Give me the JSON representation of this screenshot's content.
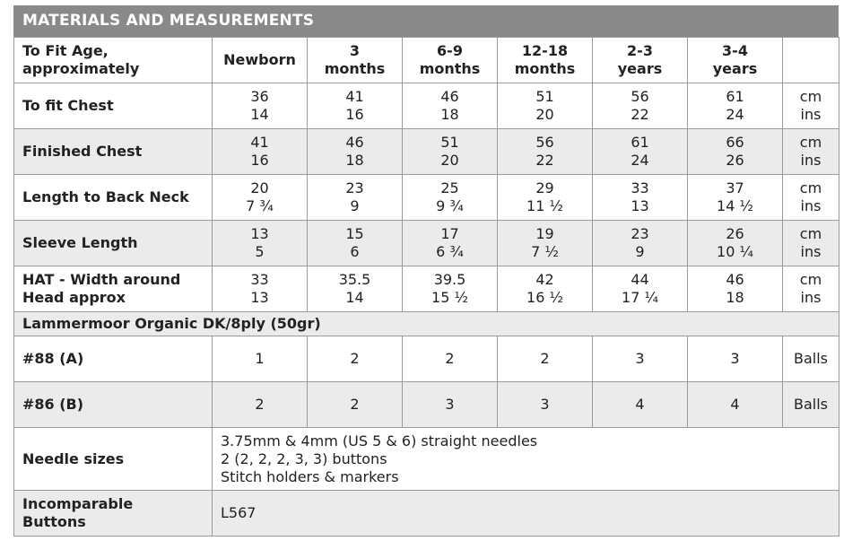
{
  "title": "MATERIALS AND MEASUREMENTS",
  "header": {
    "label_line1": "To Fit Age,",
    "label_line2": "approximately",
    "sizes": [
      {
        "l1": "Newborn",
        "l2": ""
      },
      {
        "l1": "3",
        "l2": "months"
      },
      {
        "l1": "6-9",
        "l2": "months"
      },
      {
        "l1": "12-18",
        "l2": "months"
      },
      {
        "l1": "2-3",
        "l2": "years"
      },
      {
        "l1": "3-4",
        "l2": "years"
      }
    ]
  },
  "measurements": [
    {
      "label1": "To fit Chest",
      "label2": "",
      "cm": [
        "36",
        "41",
        "46",
        "51",
        "56",
        "61"
      ],
      "ins": [
        "14",
        "16",
        "18",
        "20",
        "22",
        "24"
      ],
      "unit_cm": "cm",
      "unit_ins": "ins"
    },
    {
      "label1": "Finished Chest",
      "label2": "",
      "cm": [
        "41",
        "46",
        "51",
        "56",
        "61",
        "66"
      ],
      "ins": [
        "16",
        "18",
        "20",
        "22",
        "24",
        "26"
      ],
      "unit_cm": "cm",
      "unit_ins": "ins"
    },
    {
      "label1": "Length to Back Neck",
      "label2": "",
      "cm": [
        "20",
        "23",
        "25",
        "29",
        "33",
        "37"
      ],
      "ins": [
        "7 ¾",
        "9",
        "9 ¾",
        "11 ½",
        "13",
        "14 ½"
      ],
      "unit_cm": "cm",
      "unit_ins": "ins"
    },
    {
      "label1": "Sleeve Length",
      "label2": "",
      "cm": [
        "13",
        "15",
        "17",
        "19",
        "23",
        "26"
      ],
      "ins": [
        "5",
        "6",
        "6 ¾",
        "7 ½",
        "9",
        "10 ¼"
      ],
      "unit_cm": "cm",
      "unit_ins": "ins"
    },
    {
      "label1": "HAT - Width around",
      "label2": "Head approx",
      "cm": [
        "33",
        "35.5",
        "39.5",
        "42",
        "44",
        "46"
      ],
      "ins": [
        "13",
        "14",
        "15 ½",
        "16 ½",
        "17 ¼",
        "18"
      ],
      "unit_cm": "cm",
      "unit_ins": "ins"
    }
  ],
  "yarn_section": "Lammermoor Organic DK/8ply (50gr)",
  "yarns": [
    {
      "label": "#88 (A)",
      "values": [
        "1",
        "2",
        "2",
        "2",
        "3",
        "3"
      ],
      "unit": "Balls"
    },
    {
      "label": "#86 (B)",
      "values": [
        "2",
        "2",
        "3",
        "3",
        "4",
        "4"
      ],
      "unit": "Balls"
    }
  ],
  "needles": {
    "label": "Needle sizes",
    "lines": [
      "3.75mm & 4mm (US 5 & 6) straight needles",
      "2 (2, 2, 2, 3, 3) buttons",
      "Stitch holders & markers"
    ]
  },
  "buttons": {
    "label1": "Incomparable",
    "label2": "Buttons",
    "value": "L567"
  }
}
